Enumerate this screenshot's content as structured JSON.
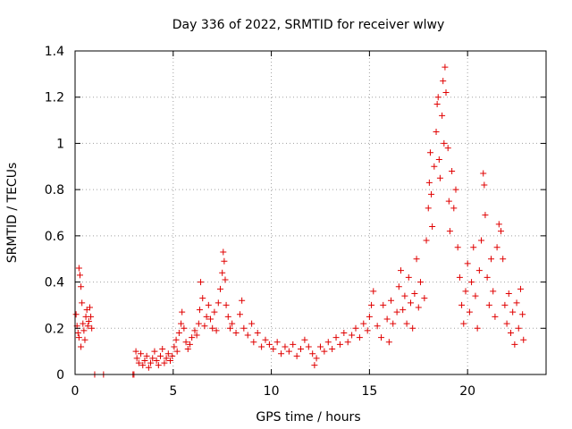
{
  "chart_data": {
    "type": "scatter",
    "title": "Day 336 of 2022, SRMTID for receiver wlwy",
    "xlabel": "GPS time / hours",
    "ylabel": "SRMTID / TECUs",
    "xlim": [
      0,
      24
    ],
    "ylim": [
      0,
      1.4
    ],
    "xticks": [
      0,
      5,
      10,
      15,
      20
    ],
    "xtick_labels": [
      "0",
      "5",
      "10",
      "15",
      "20"
    ],
    "yticks": [
      0,
      0.2,
      0.4,
      0.6,
      0.8,
      1.0,
      1.2,
      1.4
    ],
    "ytick_labels": [
      "0",
      "0.2",
      "0.4",
      "0.6",
      "0.8",
      "1",
      "1.2",
      "1.4"
    ],
    "grid": true,
    "marker": "+",
    "colors": {
      "series": "#e00000",
      "grid": "#a0a0a0",
      "axis": "#000000"
    },
    "series": [
      {
        "name": "SRMTID",
        "points": [
          [
            0.05,
            0.26
          ],
          [
            0.1,
            0.21
          ],
          [
            0.15,
            0.18
          ],
          [
            0.2,
            0.16
          ],
          [
            0.2,
            0.46
          ],
          [
            0.25,
            0.43
          ],
          [
            0.3,
            0.38
          ],
          [
            0.3,
            0.12
          ],
          [
            0.35,
            0.31
          ],
          [
            0.4,
            0.22
          ],
          [
            0.45,
            0.19
          ],
          [
            0.5,
            0.15
          ],
          [
            0.55,
            0.25
          ],
          [
            0.6,
            0.28
          ],
          [
            0.65,
            0.21
          ],
          [
            0.7,
            0.23
          ],
          [
            0.75,
            0.29
          ],
          [
            0.8,
            0.25
          ],
          [
            0.85,
            0.2
          ],
          [
            1.0,
            0.0
          ],
          [
            1.45,
            0.0
          ],
          [
            2.95,
            0.0
          ],
          [
            3.0,
            0.0
          ],
          [
            3.1,
            0.1
          ],
          [
            3.15,
            0.07
          ],
          [
            3.25,
            0.05
          ],
          [
            3.35,
            0.09
          ],
          [
            3.45,
            0.04
          ],
          [
            3.55,
            0.06
          ],
          [
            3.65,
            0.08
          ],
          [
            3.75,
            0.03
          ],
          [
            3.85,
            0.05
          ],
          [
            3.95,
            0.07
          ],
          [
            4.05,
            0.1
          ],
          [
            4.15,
            0.06
          ],
          [
            4.25,
            0.04
          ],
          [
            4.35,
            0.08
          ],
          [
            4.45,
            0.11
          ],
          [
            4.55,
            0.05
          ],
          [
            4.65,
            0.07
          ],
          [
            4.75,
            0.09
          ],
          [
            4.85,
            0.06
          ],
          [
            4.95,
            0.08
          ],
          [
            5.05,
            0.12
          ],
          [
            5.15,
            0.15
          ],
          [
            5.2,
            0.1
          ],
          [
            5.3,
            0.18
          ],
          [
            5.4,
            0.22
          ],
          [
            5.45,
            0.27
          ],
          [
            5.55,
            0.2
          ],
          [
            5.65,
            0.14
          ],
          [
            5.75,
            0.11
          ],
          [
            5.85,
            0.13
          ],
          [
            5.95,
            0.16
          ],
          [
            6.1,
            0.19
          ],
          [
            6.2,
            0.17
          ],
          [
            6.3,
            0.22
          ],
          [
            6.35,
            0.28
          ],
          [
            6.4,
            0.4
          ],
          [
            6.5,
            0.33
          ],
          [
            6.6,
            0.21
          ],
          [
            6.7,
            0.25
          ],
          [
            6.8,
            0.3
          ],
          [
            6.9,
            0.24
          ],
          [
            7.0,
            0.2
          ],
          [
            7.1,
            0.27
          ],
          [
            7.2,
            0.19
          ],
          [
            7.3,
            0.31
          ],
          [
            7.4,
            0.37
          ],
          [
            7.5,
            0.44
          ],
          [
            7.55,
            0.53
          ],
          [
            7.6,
            0.49
          ],
          [
            7.65,
            0.41
          ],
          [
            7.7,
            0.3
          ],
          [
            7.8,
            0.25
          ],
          [
            7.9,
            0.2
          ],
          [
            8.0,
            0.22
          ],
          [
            8.2,
            0.18
          ],
          [
            8.4,
            0.26
          ],
          [
            8.5,
            0.32
          ],
          [
            8.6,
            0.2
          ],
          [
            8.8,
            0.17
          ],
          [
            9.0,
            0.22
          ],
          [
            9.1,
            0.14
          ],
          [
            9.3,
            0.18
          ],
          [
            9.5,
            0.12
          ],
          [
            9.7,
            0.15
          ],
          [
            9.9,
            0.13
          ],
          [
            10.1,
            0.11
          ],
          [
            10.3,
            0.14
          ],
          [
            10.5,
            0.09
          ],
          [
            10.7,
            0.12
          ],
          [
            10.9,
            0.1
          ],
          [
            11.1,
            0.13
          ],
          [
            11.3,
            0.08
          ],
          [
            11.5,
            0.11
          ],
          [
            11.7,
            0.15
          ],
          [
            11.9,
            0.12
          ],
          [
            12.1,
            0.09
          ],
          [
            12.2,
            0.04
          ],
          [
            12.3,
            0.07
          ],
          [
            12.5,
            0.12
          ],
          [
            12.7,
            0.1
          ],
          [
            12.9,
            0.14
          ],
          [
            13.1,
            0.11
          ],
          [
            13.3,
            0.16
          ],
          [
            13.5,
            0.13
          ],
          [
            13.7,
            0.18
          ],
          [
            13.9,
            0.14
          ],
          [
            14.1,
            0.17
          ],
          [
            14.3,
            0.2
          ],
          [
            14.5,
            0.16
          ],
          [
            14.7,
            0.22
          ],
          [
            14.9,
            0.19
          ],
          [
            15.0,
            0.25
          ],
          [
            15.1,
            0.3
          ],
          [
            15.2,
            0.36
          ],
          [
            15.4,
            0.21
          ],
          [
            15.6,
            0.16
          ],
          [
            15.7,
            0.3
          ],
          [
            15.9,
            0.24
          ],
          [
            16.0,
            0.14
          ],
          [
            16.1,
            0.32
          ],
          [
            16.2,
            0.22
          ],
          [
            16.4,
            0.27
          ],
          [
            16.5,
            0.38
          ],
          [
            16.6,
            0.45
          ],
          [
            16.7,
            0.28
          ],
          [
            16.8,
            0.34
          ],
          [
            16.9,
            0.22
          ],
          [
            17.0,
            0.42
          ],
          [
            17.1,
            0.31
          ],
          [
            17.2,
            0.2
          ],
          [
            17.3,
            0.35
          ],
          [
            17.4,
            0.5
          ],
          [
            17.5,
            0.29
          ],
          [
            17.6,
            0.4
          ],
          [
            17.8,
            0.33
          ],
          [
            17.9,
            0.58
          ],
          [
            18.0,
            0.72
          ],
          [
            18.05,
            0.83
          ],
          [
            18.1,
            0.96
          ],
          [
            18.15,
            0.78
          ],
          [
            18.2,
            0.64
          ],
          [
            18.3,
            0.9
          ],
          [
            18.4,
            1.05
          ],
          [
            18.45,
            1.17
          ],
          [
            18.5,
            1.2
          ],
          [
            18.55,
            0.93
          ],
          [
            18.6,
            0.85
          ],
          [
            18.7,
            1.12
          ],
          [
            18.75,
            1.27
          ],
          [
            18.8,
            1.0
          ],
          [
            18.85,
            1.33
          ],
          [
            18.9,
            1.22
          ],
          [
            19.0,
            0.98
          ],
          [
            19.05,
            0.75
          ],
          [
            19.1,
            0.62
          ],
          [
            19.2,
            0.88
          ],
          [
            19.3,
            0.72
          ],
          [
            19.4,
            0.8
          ],
          [
            19.5,
            0.55
          ],
          [
            19.6,
            0.42
          ],
          [
            19.7,
            0.3
          ],
          [
            19.8,
            0.22
          ],
          [
            19.9,
            0.36
          ],
          [
            20.0,
            0.48
          ],
          [
            20.1,
            0.27
          ],
          [
            20.2,
            0.4
          ],
          [
            20.3,
            0.55
          ],
          [
            20.4,
            0.34
          ],
          [
            20.5,
            0.2
          ],
          [
            20.6,
            0.45
          ],
          [
            20.7,
            0.58
          ],
          [
            20.8,
            0.87
          ],
          [
            20.85,
            0.82
          ],
          [
            20.9,
            0.69
          ],
          [
            21.0,
            0.42
          ],
          [
            21.1,
            0.3
          ],
          [
            21.2,
            0.5
          ],
          [
            21.3,
            0.36
          ],
          [
            21.4,
            0.25
          ],
          [
            21.5,
            0.55
          ],
          [
            21.6,
            0.65
          ],
          [
            21.7,
            0.62
          ],
          [
            21.8,
            0.5
          ],
          [
            21.9,
            0.3
          ],
          [
            22.0,
            0.22
          ],
          [
            22.1,
            0.35
          ],
          [
            22.2,
            0.18
          ],
          [
            22.3,
            0.27
          ],
          [
            22.4,
            0.13
          ],
          [
            22.5,
            0.31
          ],
          [
            22.6,
            0.2
          ],
          [
            22.7,
            0.37
          ],
          [
            22.8,
            0.26
          ],
          [
            22.85,
            0.15
          ]
        ]
      }
    ]
  }
}
